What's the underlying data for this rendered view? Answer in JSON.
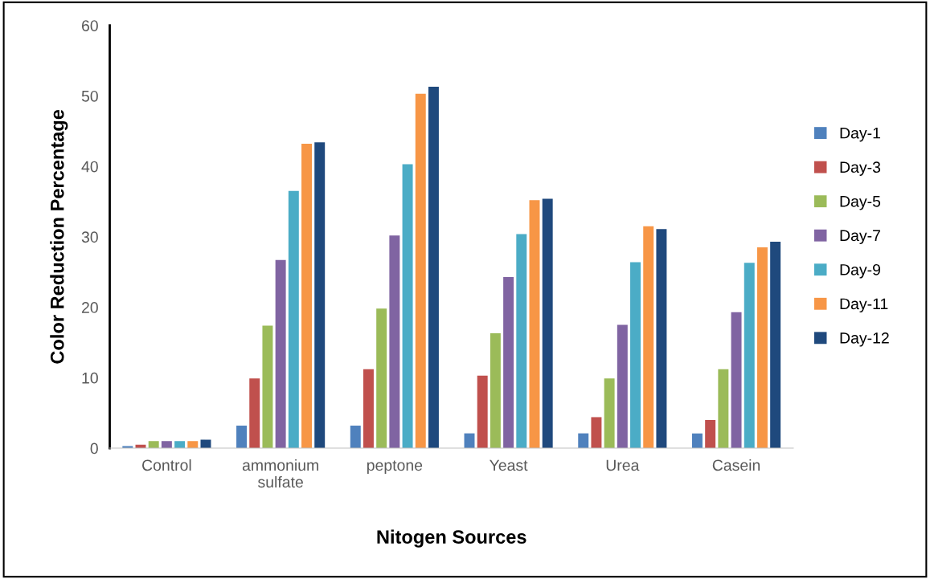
{
  "chart_data": {
    "type": "bar",
    "xlabel": "Nitogen Sources",
    "ylabel": "Color Reduction Percentage",
    "categories": [
      "Control",
      "ammonium\nsulfate",
      "peptone",
      "Yeast",
      "Urea",
      "Casein"
    ],
    "series": [
      {
        "name": "Day-1",
        "color": "#4f81bd",
        "values": [
          0.3,
          3.2,
          3.2,
          2.1,
          2.1,
          2.1
        ]
      },
      {
        "name": "Day-3",
        "color": "#c0504d",
        "values": [
          0.5,
          9.9,
          11.2,
          10.3,
          4.4,
          4.0
        ]
      },
      {
        "name": "Day-5",
        "color": "#9bbb59",
        "values": [
          1.0,
          17.4,
          19.8,
          16.3,
          9.9,
          11.2
        ]
      },
      {
        "name": "Day-7",
        "color": "#8064a2",
        "values": [
          1.0,
          26.7,
          30.2,
          24.3,
          17.5,
          19.3
        ]
      },
      {
        "name": "Day-9",
        "color": "#4bacc6",
        "values": [
          1.0,
          36.5,
          40.3,
          30.4,
          26.4,
          26.3
        ]
      },
      {
        "name": "Day-11",
        "color": "#f79646",
        "values": [
          1.0,
          43.2,
          50.3,
          35.2,
          31.5,
          28.5
        ]
      },
      {
        "name": "Day-12",
        "color": "#1f497d",
        "values": [
          1.2,
          43.4,
          51.3,
          35.4,
          31.1,
          29.3
        ]
      }
    ],
    "ylim": [
      0,
      60
    ],
    "yticks": [
      0,
      10,
      20,
      30,
      40,
      50,
      60
    ],
    "grid": false,
    "legend": "right"
  }
}
